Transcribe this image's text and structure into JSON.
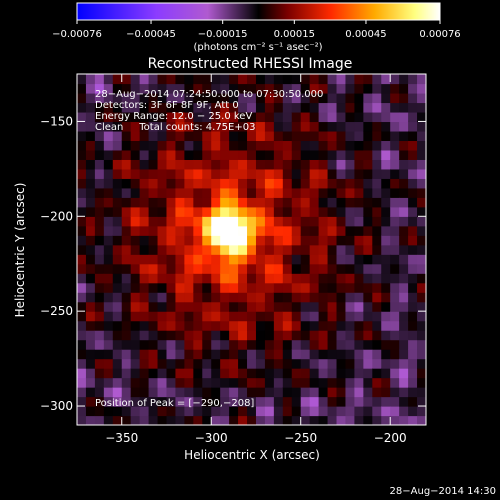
{
  "chart_data": {
    "type": "heatmap",
    "title": "Reconstructed RHESSI Image",
    "xlabel": "Heliocentric X (arcsec)",
    "ylabel": "Heliocentric Y (arcsec)",
    "xlim": [
      -375,
      -180
    ],
    "ylim": [
      -310,
      -125
    ],
    "x_ticks": [
      -350,
      -300,
      -250,
      -200
    ],
    "y_ticks": [
      -150,
      -200,
      -250,
      -300
    ],
    "x_tick_labels": [
      "−350",
      "−300",
      "−250",
      "−200"
    ],
    "y_tick_labels": [
      "−150",
      "−200",
      "−250",
      "−300"
    ],
    "colorbar": {
      "range": [
        -0.00076,
        0.00076
      ],
      "ticks": [
        -0.00076,
        -0.00045,
        -0.00015,
        0.00015,
        0.00045,
        0.00076
      ],
      "tick_labels": [
        "−0.00076",
        "−0.00045",
        "−0.00015",
        "0.00015",
        "0.00045",
        "0.00076"
      ],
      "unit_label": "(photons cm⁻² s⁻¹ asec⁻²)",
      "colors": [
        "#0000ff",
        "#8c3cff",
        "#b05ad0",
        "#000000",
        "#7a0000",
        "#ff2a00",
        "#ffaa00",
        "#ffff80",
        "#ffffff"
      ]
    },
    "annotations": [
      "28−Aug−2014 07:24:50.000 to 07:30:50.000",
      "Detectors: 3F 6F 8F 9F, Att 0",
      "Energy Range: 12.0 − 25.0 keV",
      "Clean     Total counts: 4.75E+03"
    ],
    "peak_label": "Position of Peak = [−290,−208]",
    "peak": {
      "x": -290,
      "y": -208
    },
    "timestamp": "28−Aug−2014 14:30"
  }
}
